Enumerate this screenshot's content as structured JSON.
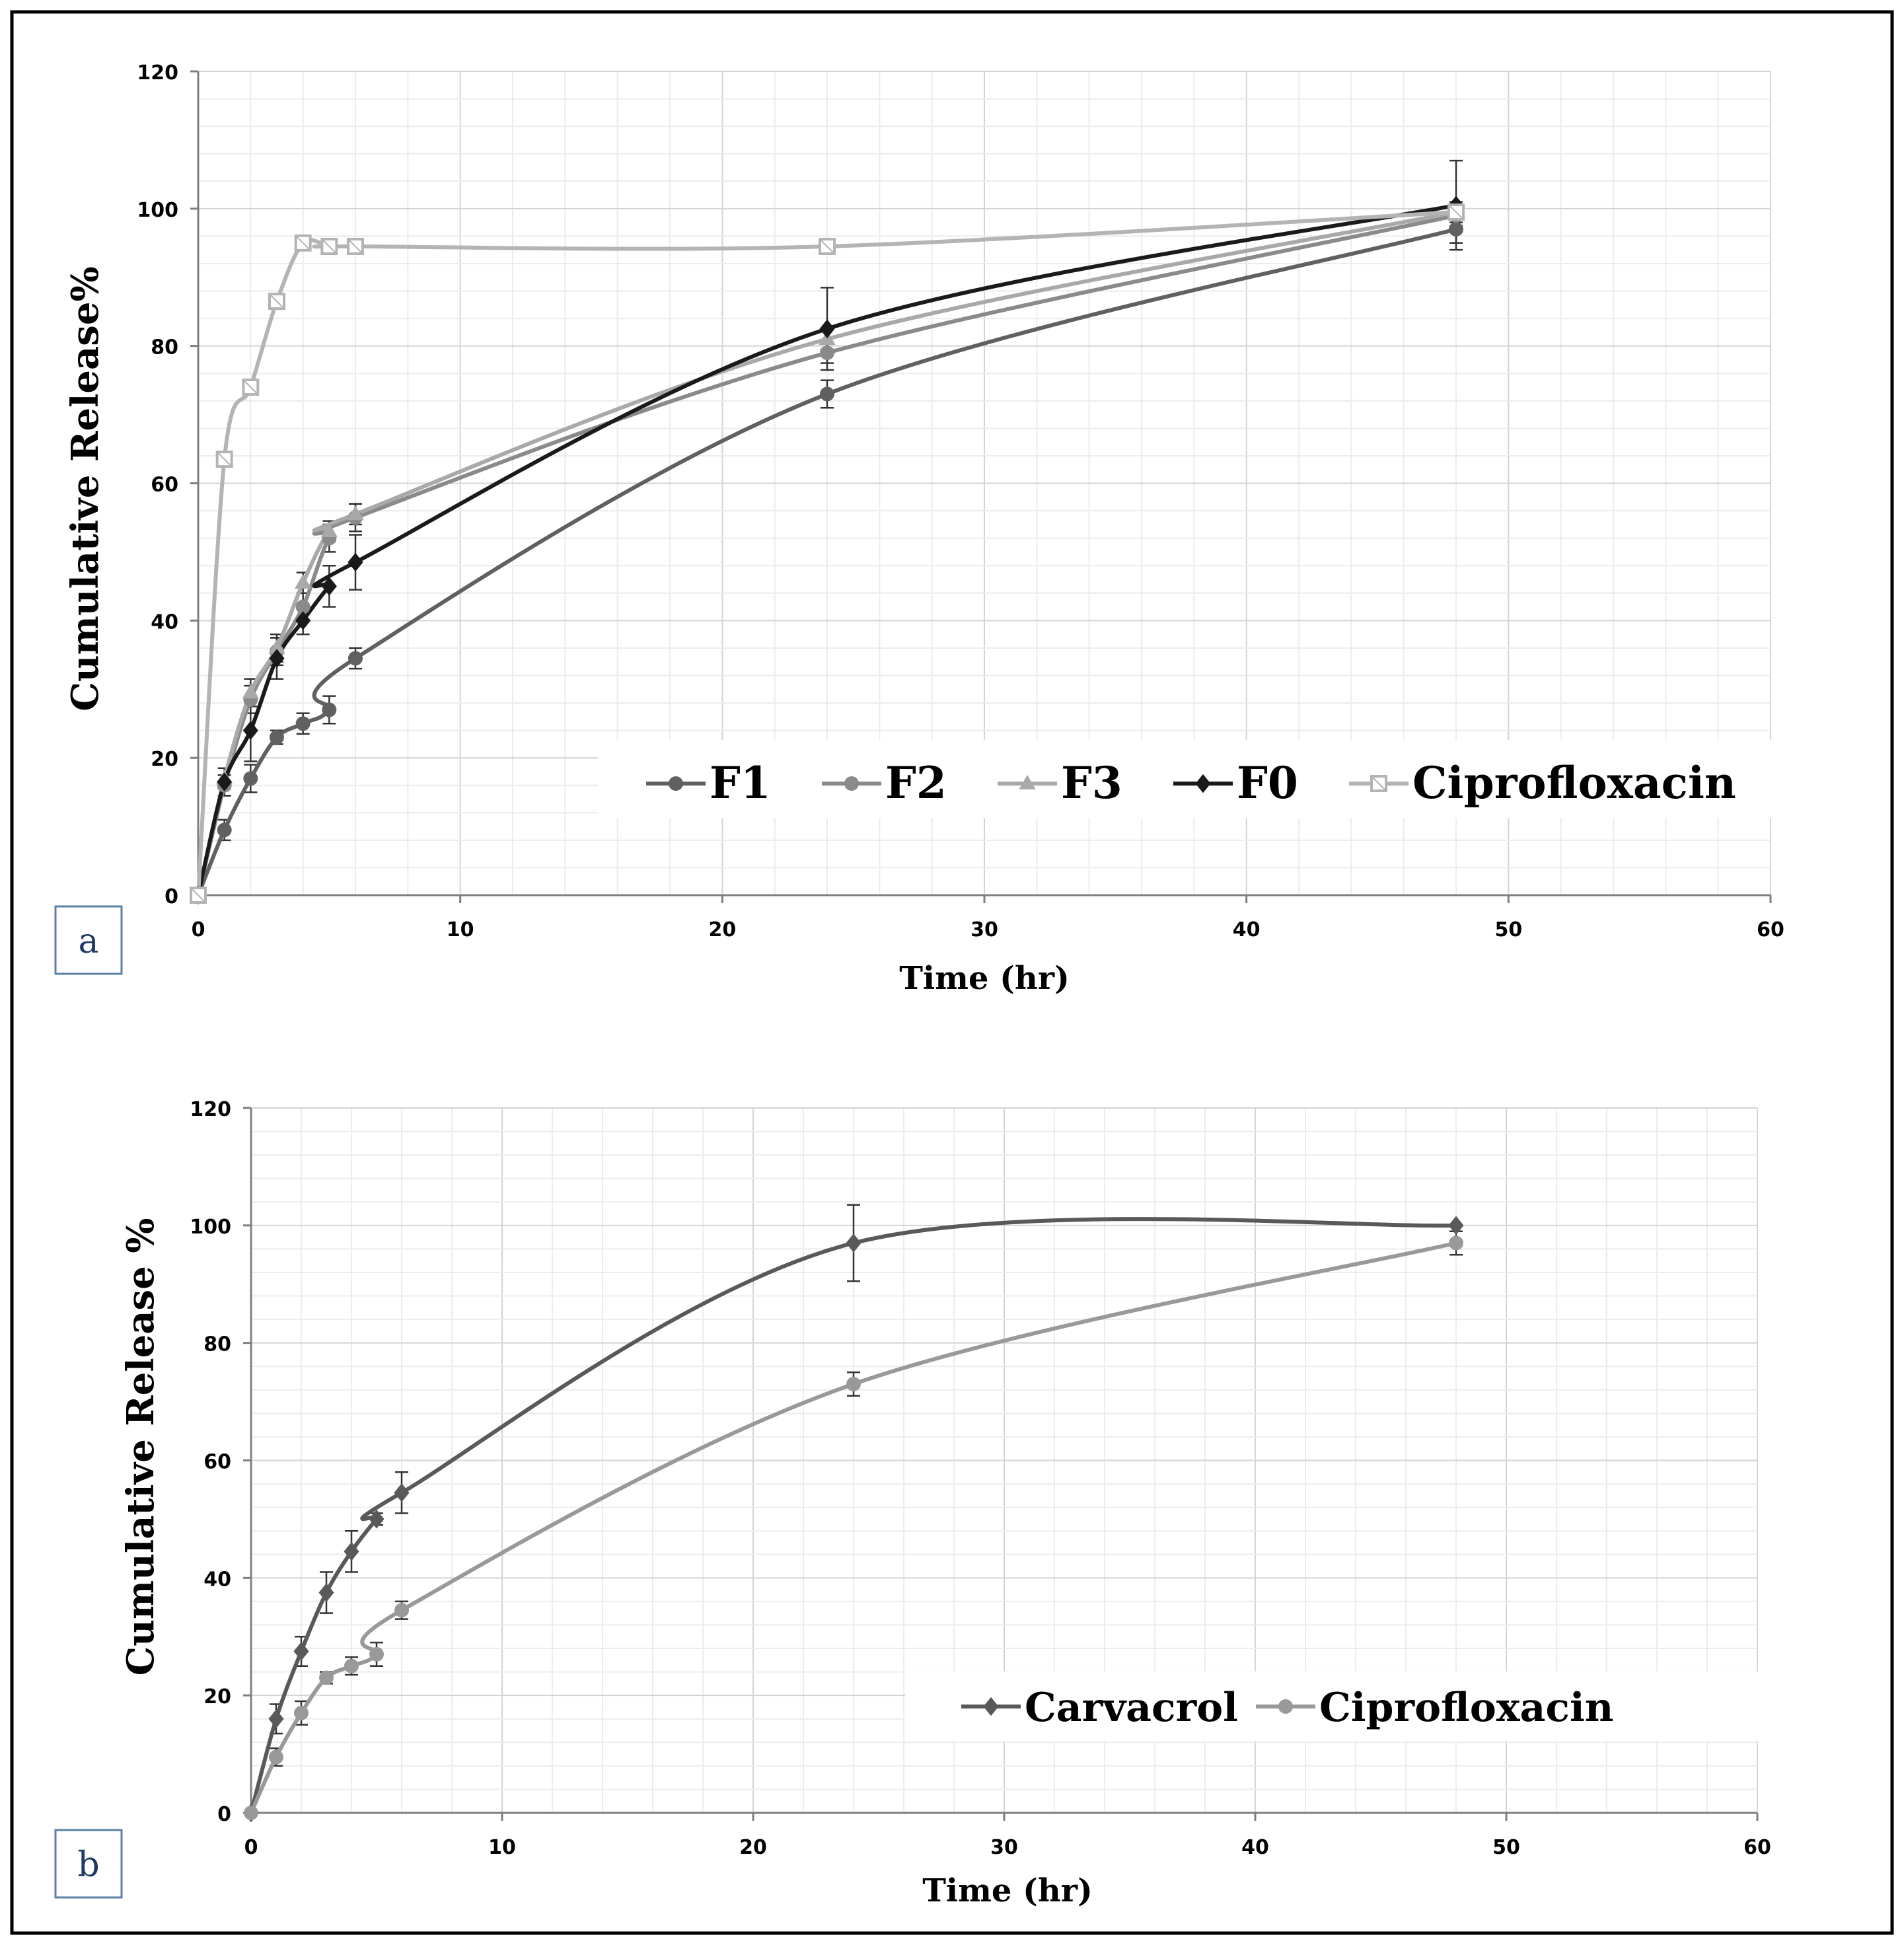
{
  "chart_data": [
    {
      "panel_label": "a",
      "type": "line",
      "xlabel": "Time (hr)",
      "ylabel": "Cumulative Release%",
      "xlim": [
        0,
        60
      ],
      "ylim": [
        0,
        120
      ],
      "x_ticks": [
        "0",
        "10",
        "20",
        "30",
        "40",
        "50",
        "60"
      ],
      "y_ticks": [
        "0",
        "20",
        "40",
        "60",
        "80",
        "100",
        "120"
      ],
      "grid": true,
      "legend_position": "bottom-right",
      "x": [
        0,
        1,
        2,
        3,
        4,
        5,
        6,
        24,
        48
      ],
      "series": [
        {
          "name": "F1",
          "marker": "circle",
          "color": "#606060",
          "values": [
            0,
            9.5,
            17,
            23,
            25,
            27,
            34.5,
            73,
            97
          ],
          "errors": [
            0,
            1.5,
            2,
            1,
            1.5,
            2,
            1.5,
            2,
            2
          ]
        },
        {
          "name": "F2",
          "marker": "circle",
          "color": "#8a8a8a",
          "values": [
            0,
            16,
            28.5,
            35.5,
            42,
            52,
            55,
            79,
            99
          ],
          "errors": [
            0,
            1.5,
            2,
            2,
            2,
            2,
            2,
            1.5,
            1.5
          ]
        },
        {
          "name": "F3",
          "marker": "triangle",
          "color": "#a9a9a9",
          "values": [
            0,
            17,
            29.5,
            36,
            45.5,
            53,
            55.5,
            81,
            99.5
          ],
          "errors": [
            0,
            1.5,
            2,
            2,
            1.5,
            1.5,
            1.5,
            1.5,
            1.5
          ]
        },
        {
          "name": "F0",
          "marker": "diamond",
          "color": "#1a1a1a",
          "values": [
            0,
            16.5,
            24,
            34.5,
            40,
            45,
            48.5,
            82.5,
            100.5
          ],
          "errors": [
            0,
            2,
            4.5,
            3,
            2,
            3,
            4,
            6,
            6.5
          ]
        },
        {
          "name": "Ciprofloxacin",
          "marker": "square",
          "color": "#b4b4b4",
          "values": [
            0,
            63.5,
            74,
            86.5,
            95,
            94.5,
            94.5,
            94.5,
            99.5
          ],
          "errors": [
            0,
            0,
            0,
            0,
            0,
            0,
            0,
            0,
            0
          ]
        }
      ]
    },
    {
      "panel_label": "b",
      "type": "line",
      "xlabel": "Time (hr)",
      "ylabel": "Cumulative Release %",
      "xlim": [
        0,
        60
      ],
      "ylim": [
        0,
        120
      ],
      "x_ticks": [
        "0",
        "10",
        "20",
        "30",
        "40",
        "50",
        "60"
      ],
      "y_ticks": [
        "0",
        "20",
        "40",
        "60",
        "80",
        "100",
        "120"
      ],
      "grid": true,
      "legend_position": "bottom-right",
      "x": [
        0,
        1,
        2,
        3,
        4,
        5,
        6,
        24,
        48
      ],
      "series": [
        {
          "name": "Carvacrol",
          "marker": "diamond",
          "color": "#595959",
          "values": [
            0,
            16,
            27.5,
            37.5,
            44.5,
            50,
            54.5,
            97,
            100
          ],
          "errors": [
            0,
            2.5,
            2.5,
            3.5,
            3.5,
            1,
            3.5,
            6.5,
            0
          ]
        },
        {
          "name": "Ciprofloxacin",
          "marker": "circle",
          "color": "#999999",
          "values": [
            0,
            9.5,
            17,
            23,
            25,
            27,
            34.5,
            73,
            97
          ],
          "errors": [
            0,
            1.5,
            2,
            1,
            1.5,
            2,
            1.5,
            2,
            2
          ]
        }
      ]
    }
  ]
}
